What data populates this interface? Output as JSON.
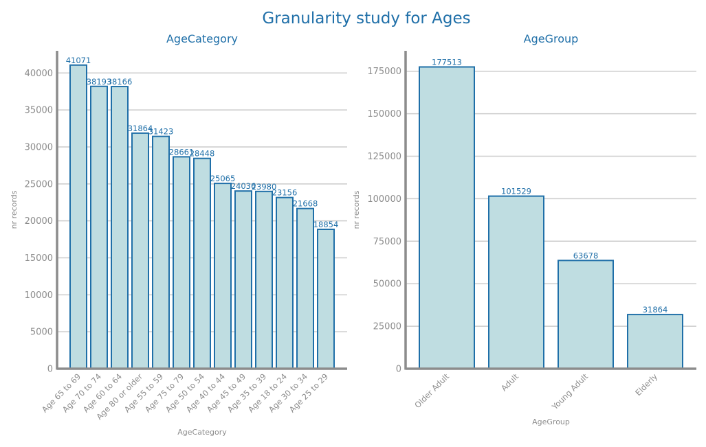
{
  "title": "Granularity study for Ages",
  "chart_data": [
    {
      "type": "bar",
      "title": "AgeCategory",
      "xlabel": "AgeCategory",
      "ylabel": "nr records",
      "ylim": [
        0,
        43000
      ],
      "yticks": [
        0,
        5000,
        10000,
        15000,
        20000,
        25000,
        30000,
        35000,
        40000
      ],
      "grid": true,
      "categories": [
        "Age 65 to 69",
        "Age 70 to 74",
        "Age 60 to 64",
        "Age 80 or older",
        "Age 55 to 59",
        "Age 75 to 79",
        "Age 50 to 54",
        "Age 40 to 44",
        "Age 45 to 49",
        "Age 35 to 39",
        "Age 18 to 24",
        "Age 30 to 34",
        "Age 25 to 29"
      ],
      "values": [
        41071,
        38193,
        38166,
        31864,
        31423,
        28661,
        28448,
        25065,
        24036,
        23980,
        23156,
        21668,
        18854
      ]
    },
    {
      "type": "bar",
      "title": "AgeGroup",
      "xlabel": "AgeGroup",
      "ylabel": "nr records",
      "ylim": [
        0,
        187000
      ],
      "yticks": [
        0,
        25000,
        50000,
        75000,
        100000,
        125000,
        150000,
        175000
      ],
      "grid": true,
      "categories": [
        "Older Adult",
        "Adult",
        "Young Adult",
        "Elderly"
      ],
      "values": [
        177513,
        101529,
        63678,
        31864
      ]
    }
  ],
  "colors": {
    "bar_fill": "#bfdde1",
    "bar_edge": "#1f6fa8",
    "title": "#1f6fa8",
    "tick": "#8c8c8c",
    "grid": "#cccccc"
  }
}
